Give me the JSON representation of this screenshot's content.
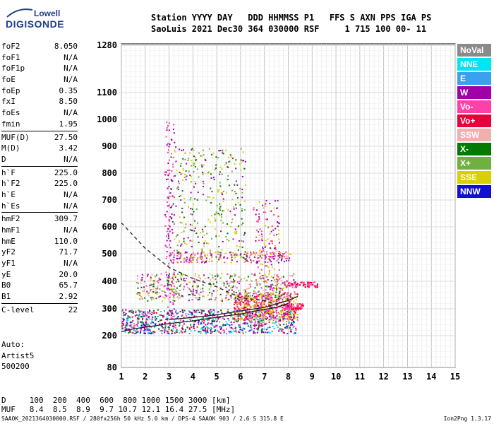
{
  "logo": {
    "line1": "Lowell",
    "line2": "DIGISONDE"
  },
  "header": {
    "line1": "Station YYYY DAY   DDD HHMMSS P1   FFS S AXN PPS IGA PS",
    "line2": "SaoLuis 2021 Dec30 364 030000 RSF     1 715 100 00- 11"
  },
  "params": [
    {
      "k": "foF2",
      "v": "8.050"
    },
    {
      "k": "foF1",
      "v": "N/A"
    },
    {
      "k": "foF1p",
      "v": "N/A"
    },
    {
      "k": "foE",
      "v": "N/A"
    },
    {
      "k": "foEp",
      "v": "0.35"
    },
    {
      "k": "fxI",
      "v": "8.50"
    },
    {
      "k": "foEs",
      "v": "N/A"
    },
    {
      "k": "fmin",
      "v": "1.95"
    },
    {
      "sep": true
    },
    {
      "k": "MUF(D)",
      "v": "27.50"
    },
    {
      "k": "M(D)",
      "v": "3.42"
    },
    {
      "k": "D",
      "v": "N/A"
    },
    {
      "sep": true
    },
    {
      "k": "h`F",
      "v": "225.0"
    },
    {
      "k": "h`F2",
      "v": "225.0"
    },
    {
      "k": "h`E",
      "v": "N/A"
    },
    {
      "k": "h`Es",
      "v": "N/A"
    },
    {
      "sep": true
    },
    {
      "k": "hmF2",
      "v": "309.7"
    },
    {
      "k": "hmF1",
      "v": "N/A"
    },
    {
      "k": "hmE",
      "v": "110.0"
    },
    {
      "k": "yF2",
      "v": "71.7"
    },
    {
      "k": "yF1",
      "v": "N/A"
    },
    {
      "k": "yE",
      "v": "20.0"
    },
    {
      "k": "B0",
      "v": "65.7"
    },
    {
      "k": "B1",
      "v": "2.92"
    },
    {
      "sep": true
    },
    {
      "k": "C-level",
      "v": "22"
    }
  ],
  "notes": [
    "Auto:",
    "Artist5",
    "500200"
  ],
  "legend": [
    {
      "label": "NoVal",
      "color": "#8a8a8a"
    },
    {
      "label": "NNE",
      "color": "#00e5f5"
    },
    {
      "label": "E",
      "color": "#3aa0f0"
    },
    {
      "label": "W",
      "color": "#a000a8"
    },
    {
      "label": "Vo-",
      "color": "#ff40a8"
    },
    {
      "label": "Vo+",
      "color": "#e8003a"
    },
    {
      "label": "SSW",
      "color": "#f0b0b0"
    },
    {
      "label": "X-",
      "color": "#007a00"
    },
    {
      "label": "X+",
      "color": "#70b040"
    },
    {
      "label": "SSE",
      "color": "#d8d000"
    },
    {
      "label": "NNW",
      "color": "#1010d0"
    }
  ],
  "bottom": {
    "line1": "D     100  200  400  600  800 1000 1500 3000 [km]",
    "line2": "MUF   8.4  8.5  8.9  9.7 10.7 12.1 16.4 27.5 [MHz]"
  },
  "footer": "SAAOK_2021364030000.RSF / 280fx256h 50 kHz 5.0 km / DPS-4 SAAOK 903 / 2.6 S 315.8 E",
  "version": "Ion2Png 1.3.17",
  "chart_data": {
    "type": "scatter",
    "title": "",
    "xlabel": "",
    "ylabel": "",
    "x_ticks": [
      1,
      2,
      3,
      4,
      5,
      6,
      7,
      8,
      9,
      10,
      11,
      12,
      13,
      14,
      15
    ],
    "y_ticks": [
      80,
      200,
      300,
      400,
      500,
      600,
      700,
      800,
      900,
      1000,
      1100,
      1280
    ],
    "xlim": [
      1,
      15
    ],
    "ylim": [
      80,
      1280
    ],
    "y_scale": "nonlinear (ionogram virtual height)",
    "grid": true,
    "x_units": "MHz",
    "y_units": "km",
    "traces": [
      {
        "name": "F2 trace",
        "x": [
          1.0,
          1.5,
          2.0,
          2.5,
          3.0,
          3.5,
          4.0,
          4.5,
          5.0,
          5.5,
          6.0,
          6.5,
          7.0,
          7.5,
          8.0
        ],
        "y": [
          215,
          225,
          232,
          238,
          245,
          250,
          255,
          262,
          268,
          275,
          280,
          290,
          298,
          305,
          320
        ]
      },
      {
        "name": "profile",
        "x": [
          1.0,
          2.0,
          3.0,
          4.0,
          5.0,
          6.0,
          7.0,
          7.5,
          8.05
        ],
        "y": [
          615,
          520,
          450,
          410,
          380,
          340,
          330,
          315,
          310
        ]
      },
      {
        "name": "extraordinary",
        "x": [
          3.0,
          4.0,
          5.0,
          6.0,
          7.0,
          7.5,
          8.0,
          8.4
        ],
        "y": [
          260,
          268,
          278,
          292,
          305,
          318,
          330,
          345
        ]
      }
    ]
  }
}
